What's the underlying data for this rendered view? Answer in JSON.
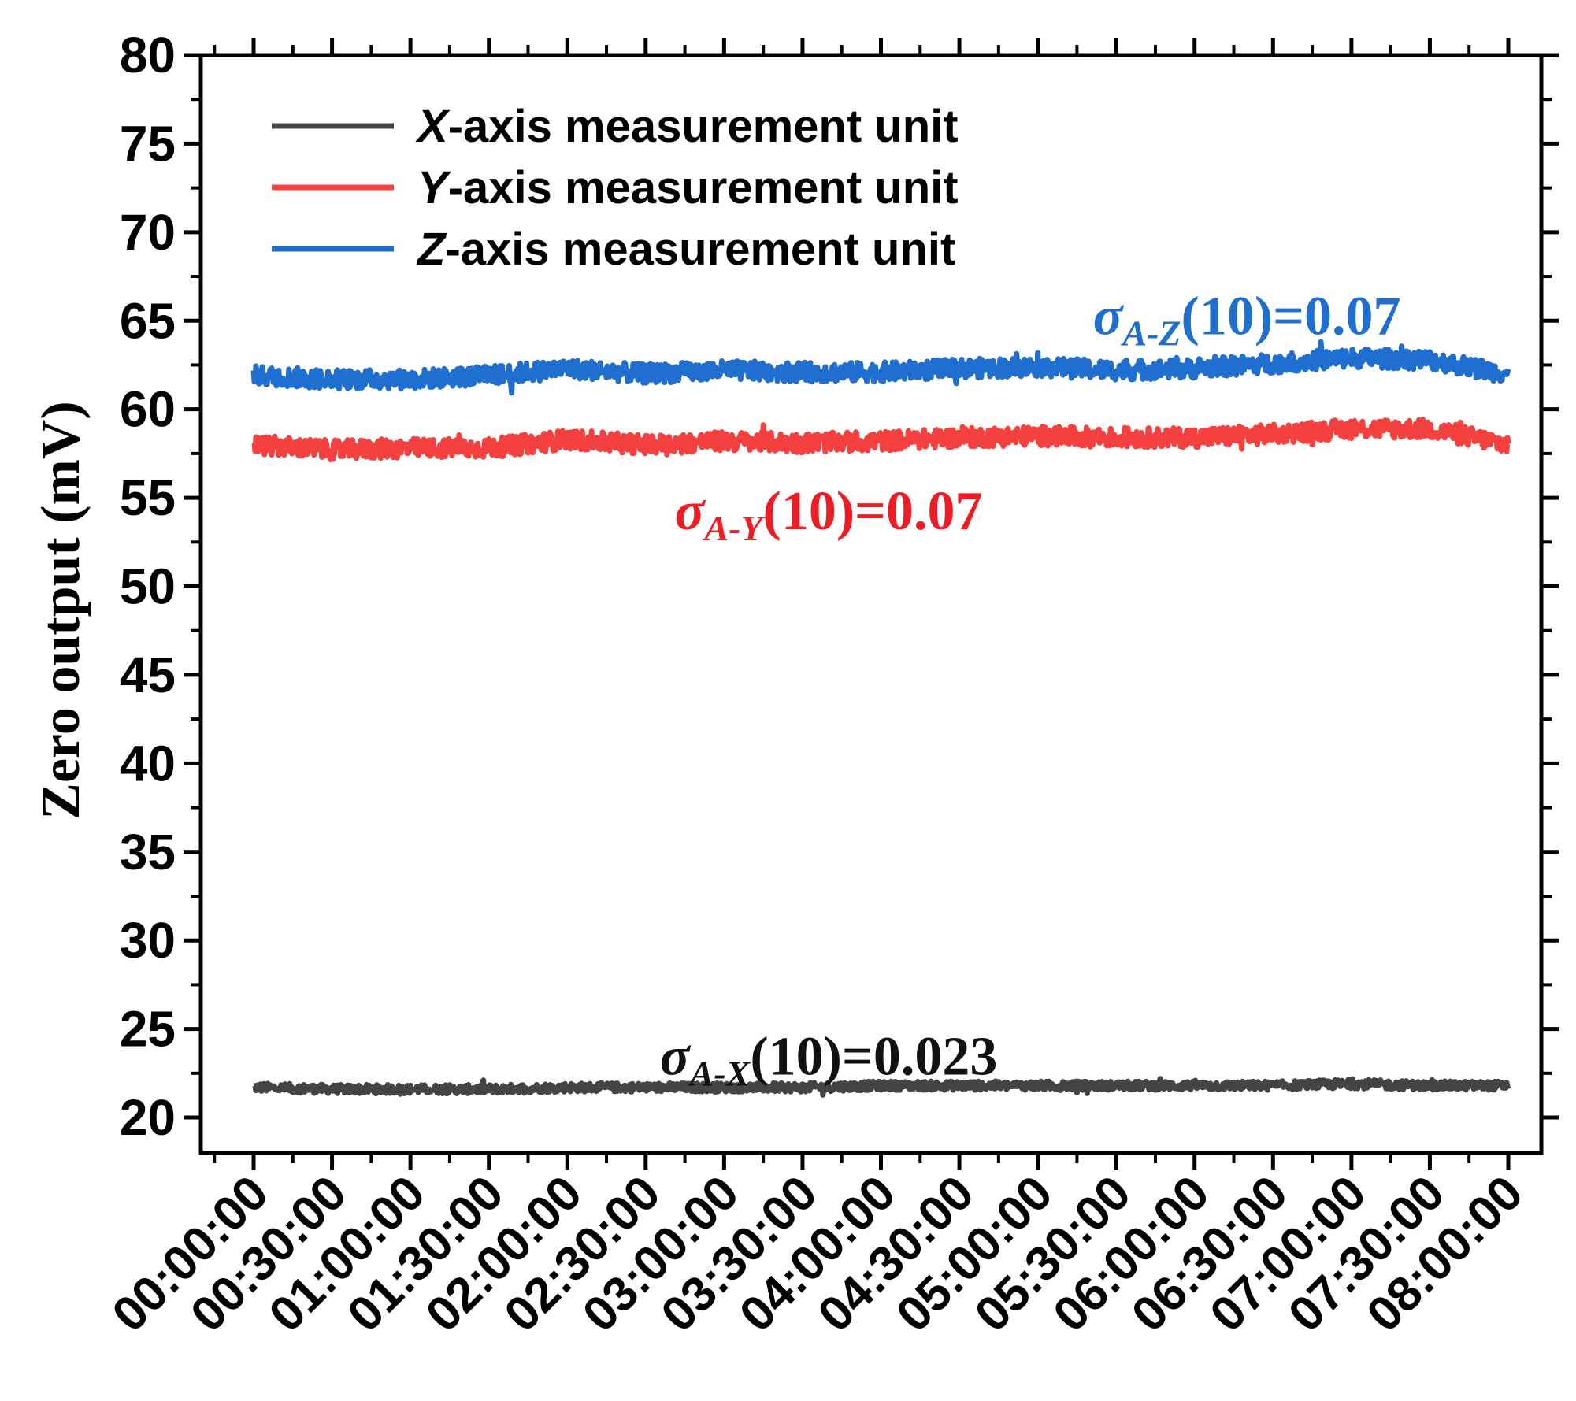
{
  "chart_data": {
    "type": "line",
    "ylabel": "Zero output (mV)",
    "xlabel": "",
    "title": "",
    "ylim": [
      18,
      80
    ],
    "y_ticks": [
      20,
      25,
      30,
      35,
      40,
      45,
      50,
      55,
      60,
      65,
      70,
      75,
      80
    ],
    "x_ticks": [
      "00:00:00",
      "00:30:00",
      "01:00:00",
      "01:30:00",
      "02:00:00",
      "02:30:00",
      "03:00:00",
      "03:30:00",
      "04:00:00",
      "04:30:00",
      "05:00:00",
      "05:30:00",
      "06:00:00",
      "06:30:00",
      "07:00:00",
      "07:30:00",
      "08:00:00"
    ],
    "x_range": [
      "00:00:00",
      "08:00:00"
    ],
    "grid": false,
    "legend_position": "top-left",
    "legend": [
      {
        "axis": "X",
        "text": "-axis measurement unit",
        "color": "#444444"
      },
      {
        "axis": "Y",
        "text": "-axis measurement unit",
        "color": "#f54040"
      },
      {
        "axis": "Z",
        "text": "-axis measurement unit",
        "color": "#1f6fd0"
      }
    ],
    "series": [
      {
        "name": "X-axis measurement unit",
        "color": "#444444",
        "noise": 0.25,
        "x": [
          "00:00:00",
          "00:30:00",
          "01:00:00",
          "01:30:00",
          "02:00:00",
          "02:30:00",
          "03:00:00",
          "03:30:00",
          "04:00:00",
          "04:30:00",
          "05:00:00",
          "05:30:00",
          "06:00:00",
          "06:30:00",
          "07:00:00",
          "07:30:00",
          "08:00:00"
        ],
        "y": [
          21.7,
          21.6,
          21.6,
          21.6,
          21.7,
          21.7,
          21.7,
          21.7,
          21.8,
          21.8,
          21.8,
          21.8,
          21.8,
          21.8,
          21.9,
          21.8,
          21.8
        ]
      },
      {
        "name": "Y-axis measurement unit",
        "color": "#f54040",
        "noise": 0.55,
        "x": [
          "00:00:00",
          "00:30:00",
          "01:00:00",
          "01:30:00",
          "02:00:00",
          "02:30:00",
          "03:00:00",
          "03:30:00",
          "04:00:00",
          "04:30:00",
          "05:00:00",
          "05:30:00",
          "06:00:00",
          "06:30:00",
          "07:00:00",
          "07:30:00",
          "08:00:00"
        ],
        "y": [
          58.0,
          57.7,
          57.8,
          57.8,
          58.3,
          58.0,
          58.2,
          58.1,
          58.2,
          58.4,
          58.5,
          58.4,
          58.4,
          58.6,
          58.9,
          58.9,
          58.0
        ]
      },
      {
        "name": "Z-axis measurement unit",
        "color": "#1f6fd0",
        "noise": 0.55,
        "x": [
          "00:00:00",
          "00:30:00",
          "01:00:00",
          "01:30:00",
          "02:00:00",
          "02:30:00",
          "03:00:00",
          "03:30:00",
          "04:00:00",
          "04:30:00",
          "05:00:00",
          "05:30:00",
          "06:00:00",
          "06:30:00",
          "07:00:00",
          "07:30:00",
          "08:00:00"
        ],
        "y": [
          61.9,
          61.7,
          61.7,
          61.9,
          62.3,
          62.0,
          62.2,
          62.1,
          62.1,
          62.3,
          62.4,
          62.2,
          62.3,
          62.6,
          62.9,
          62.8,
          62.0
        ]
      }
    ],
    "annotations": [
      {
        "symbol": "σ",
        "subscript": "A-Z",
        "text": "(10)=0.07",
        "color": "#1f6fd0",
        "x": "06:20:00",
        "y": 65.3
      },
      {
        "symbol": "σ",
        "subscript": "A-Y",
        "text": "(10)=0.07",
        "color": "#ee1c24",
        "x": "03:40:00",
        "y": 54.3
      },
      {
        "symbol": "σ",
        "subscript": "A-X",
        "text": "(10)=0.023",
        "color": "#111111",
        "x": "03:40:00",
        "y": 23.5
      }
    ]
  }
}
